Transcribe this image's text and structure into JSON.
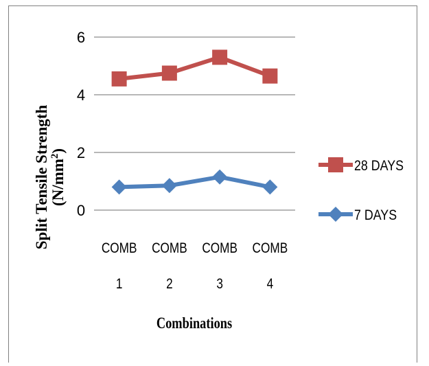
{
  "chart_data": {
    "type": "line",
    "categories": [
      [
        "COMB",
        "1"
      ],
      [
        "COMB",
        "2"
      ],
      [
        "COMB",
        "3"
      ],
      [
        "COMB",
        "4"
      ]
    ],
    "series": [
      {
        "name": "28 DAYS",
        "values": [
          4.55,
          4.75,
          5.3,
          4.65
        ],
        "color": "#c0504d",
        "marker": "square"
      },
      {
        "name": "7 DAYS",
        "values": [
          0.8,
          0.85,
          1.15,
          0.8
        ],
        "color": "#4f81bd",
        "marker": "diamond"
      }
    ],
    "ylim": [
      0,
      6
    ],
    "yticks": [
      "0",
      "2",
      "4",
      "6"
    ],
    "ylabel": "Split Tensile Strength",
    "ylabel_units": [
      "(N/mm",
      "2",
      ")"
    ],
    "xlabel": "Combinations",
    "grid": "horizontal",
    "legend_position": "right",
    "legend_order": [
      "28 DAYS",
      "7 DAYS"
    ]
  }
}
